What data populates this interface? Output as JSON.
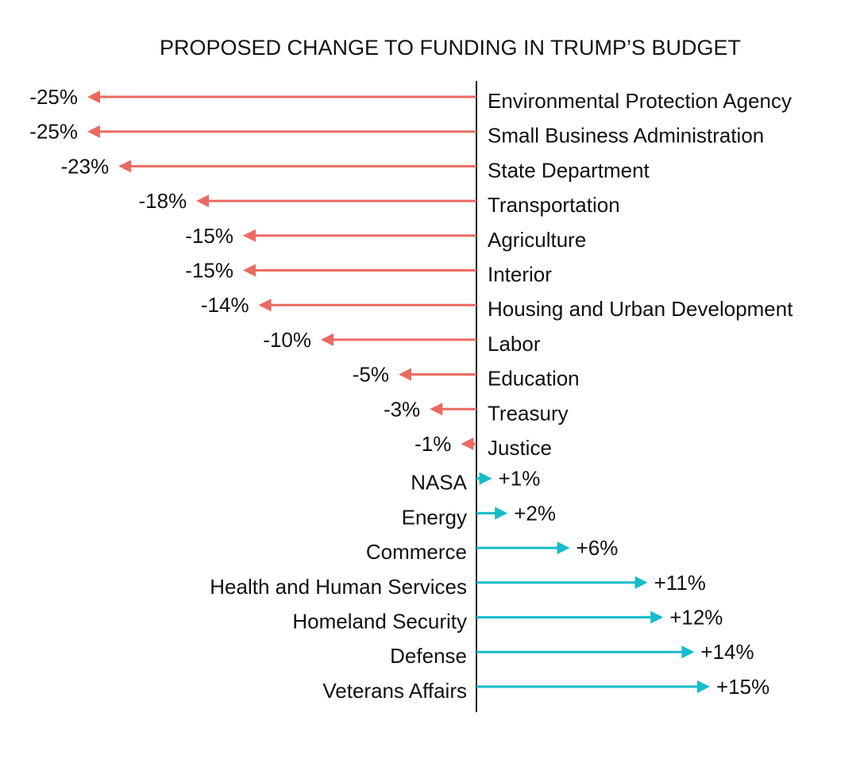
{
  "chart_data": {
    "type": "bar",
    "title": "PROPOSED CHANGE TO FUNDING IN TRUMP’S BUDGET",
    "xlabel": "",
    "ylabel": "",
    "xlim": [
      -25,
      15
    ],
    "categories": [
      "Environmental Protection Agency",
      "Small Business Administration",
      "State Department",
      "Transportation",
      "Agriculture",
      "Interior",
      "Housing and Urban Development",
      "Labor",
      "Education",
      "Treasury",
      "Justice",
      "NASA",
      "Energy",
      "Commerce",
      "Health and Human Services",
      "Homeland Security",
      "Defense",
      "Veterans Affairs"
    ],
    "values": [
      -25,
      -25,
      -23,
      -18,
      -15,
      -15,
      -14,
      -10,
      -5,
      -3,
      -1,
      1,
      2,
      6,
      11,
      12,
      14,
      15
    ],
    "value_labels": [
      "-25%",
      "-25%",
      "-23%",
      "-18%",
      "-15%",
      "-15%",
      "-14%",
      "-10%",
      "-5%",
      "-3%",
      "-1%",
      "+1%",
      "+2%",
      "+6%",
      "+11%",
      "+12%",
      "+14%",
      "+15%"
    ],
    "colors": {
      "negative": "#ea6a62",
      "positive": "#16bccb",
      "axis": "#222222"
    }
  }
}
